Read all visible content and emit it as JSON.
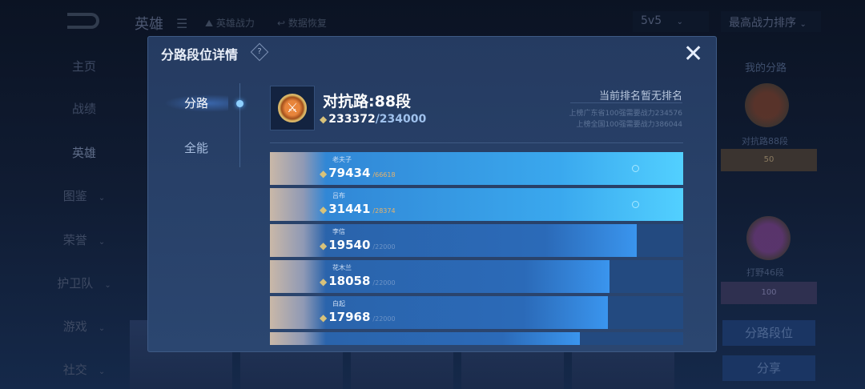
{
  "topbar": {
    "title": "英雄",
    "filter1": "英雄战力",
    "filter2": "数据恢复",
    "mode": "5v5",
    "sort": "最高战力排序"
  },
  "nav": [
    {
      "label": "主页"
    },
    {
      "label": "战绩"
    },
    {
      "label": "英雄"
    },
    {
      "label": "图鉴"
    },
    {
      "label": "荣誉"
    },
    {
      "label": "护卫队"
    },
    {
      "label": "游戏"
    },
    {
      "label": "社交"
    }
  ],
  "right_panel": {
    "title": "我的分路",
    "lane1": "对抗路88段",
    "lane1_badge": "50",
    "lane2": "打野46段",
    "lane2_badge": "100",
    "lane_button": "分路段位",
    "share_button": "分享"
  },
  "modal": {
    "title": "分路段位详情",
    "help_icon": "?",
    "close_icon": "✕",
    "tabs": [
      {
        "label": "分路",
        "active": true
      },
      {
        "label": "全能",
        "active": false
      }
    ],
    "rank_title": "对抗路:88段",
    "power_current": "233372",
    "power_total": "/234000",
    "rank_status": "当前排名暂无排名",
    "req_province": "上榜广东省100强需要战力234576",
    "req_national": "上榜全国100强需要战力386044",
    "heroes": [
      {
        "name": "老夫子",
        "power": "79434",
        "target": "/66618",
        "progress": 1
      },
      {
        "name": "吕布",
        "power": "31441",
        "target": "/28374",
        "progress": 1
      },
      {
        "name": "李信",
        "power": "19540",
        "target": "/22000",
        "progress": 0.888
      },
      {
        "name": "花木兰",
        "power": "18058",
        "target": "/22000",
        "progress": 0.821
      },
      {
        "name": "白起",
        "power": "17968",
        "target": "/22000",
        "progress": 0.817
      },
      {
        "progress": 0.75
      }
    ]
  },
  "colors": {
    "accent": "#3aa8ee",
    "gold": "#e6b26a",
    "panel": "#253b61"
  }
}
